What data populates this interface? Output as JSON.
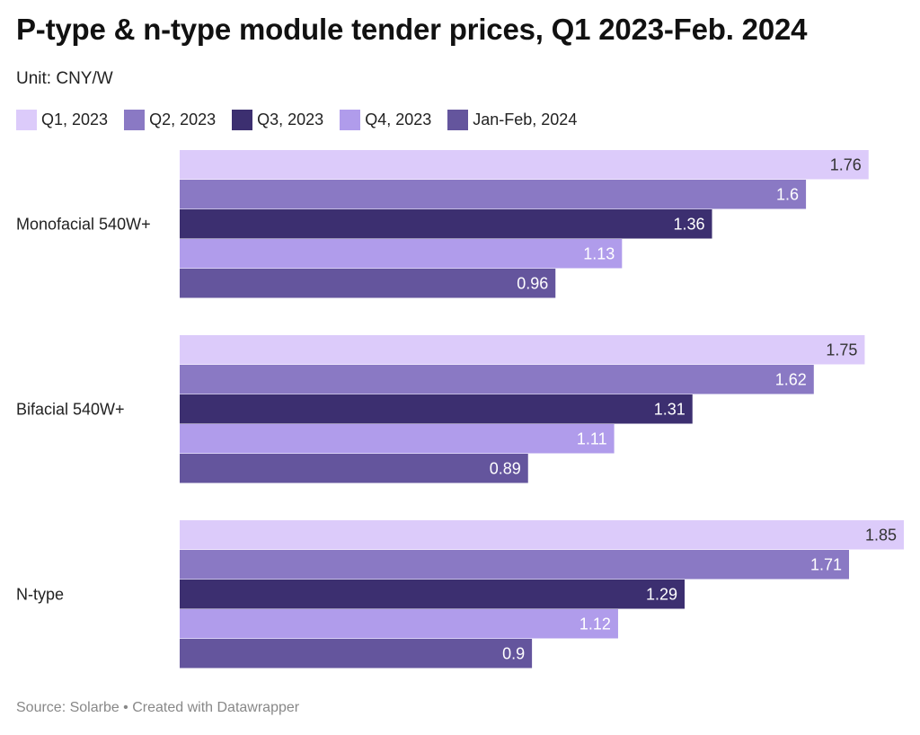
{
  "chart_data": {
    "type": "bar",
    "orientation": "horizontal",
    "title": "P-type & n-type module tender prices, Q1 2023-Feb. 2024",
    "subtitle": "Unit: CNY/W",
    "categories": [
      "Monofacial 540W+",
      "Bifacial 540W+",
      "N-type"
    ],
    "series": [
      {
        "name": "Q1, 2023",
        "color": "#dccbfa",
        "label_color": "#333333",
        "values": [
          1.76,
          1.75,
          1.85
        ]
      },
      {
        "name": "Q2, 2023",
        "color": "#8a79c4",
        "label_color": "#ffffff",
        "values": [
          1.6,
          1.62,
          1.71
        ]
      },
      {
        "name": "Q3, 2023",
        "color": "#3c2f70",
        "label_color": "#ffffff",
        "values": [
          1.36,
          1.31,
          1.29
        ]
      },
      {
        "name": "Q4, 2023",
        "color": "#b09ceb",
        "label_color": "#ffffff",
        "values": [
          1.13,
          1.11,
          1.12
        ]
      },
      {
        "name": "Jan-Feb, 2024",
        "color": "#64559d",
        "label_color": "#ffffff",
        "values": [
          0.96,
          0.89,
          0.9
        ]
      }
    ],
    "xlim": [
      0,
      1.85
    ],
    "grid": false,
    "legend_position": "top-left",
    "data_labels": true
  },
  "footer": {
    "source": "Source: Solarbe • Created with Datawrapper"
  }
}
